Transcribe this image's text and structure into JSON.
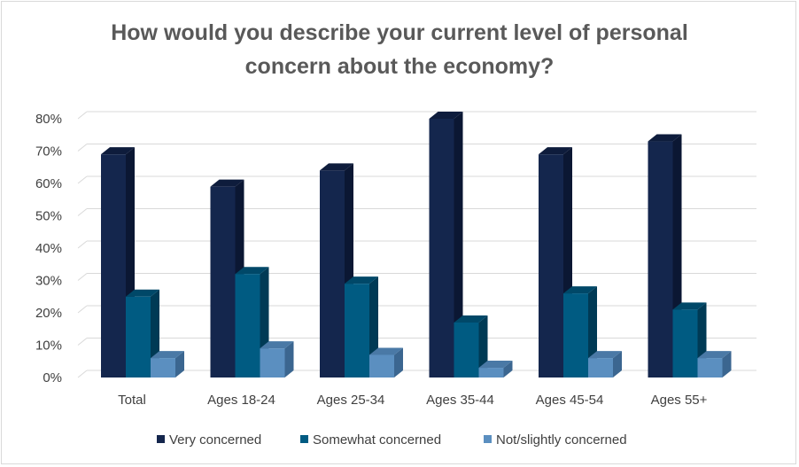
{
  "chart_data": {
    "type": "bar",
    "title_lines": [
      "How would you describe your current level of personal",
      "concern about the economy?"
    ],
    "categories": [
      "Total",
      "Ages 18-24",
      "Ages 25-34",
      "Ages 35-44",
      "Ages 45-54",
      "Ages 55+"
    ],
    "series": [
      {
        "name": "Very concerned",
        "values": [
          69,
          59,
          64,
          80,
          69,
          73
        ]
      },
      {
        "name": "Somewhat concerned",
        "values": [
          25,
          32,
          29,
          17,
          26,
          21
        ]
      },
      {
        "name": "Not/slightly concerned",
        "values": [
          6,
          9,
          7,
          3,
          6,
          6
        ]
      }
    ],
    "y_ticks": [
      "0%",
      "10%",
      "20%",
      "30%",
      "40%",
      "50%",
      "60%",
      "70%",
      "80%"
    ],
    "ylim": [
      0,
      80
    ],
    "grid": true,
    "legend": "bottom",
    "colors": {
      "Very concerned": {
        "front": "#14264d",
        "side": "#0b1733",
        "top": "#0e1c3c"
      },
      "Somewhat concerned": {
        "front": "#005b82",
        "side": "#003a55",
        "top": "#004868"
      },
      "Not/slightly concerned": {
        "front": "#5b8fc0",
        "side": "#3b6690",
        "top": "#4a79a6"
      }
    }
  }
}
